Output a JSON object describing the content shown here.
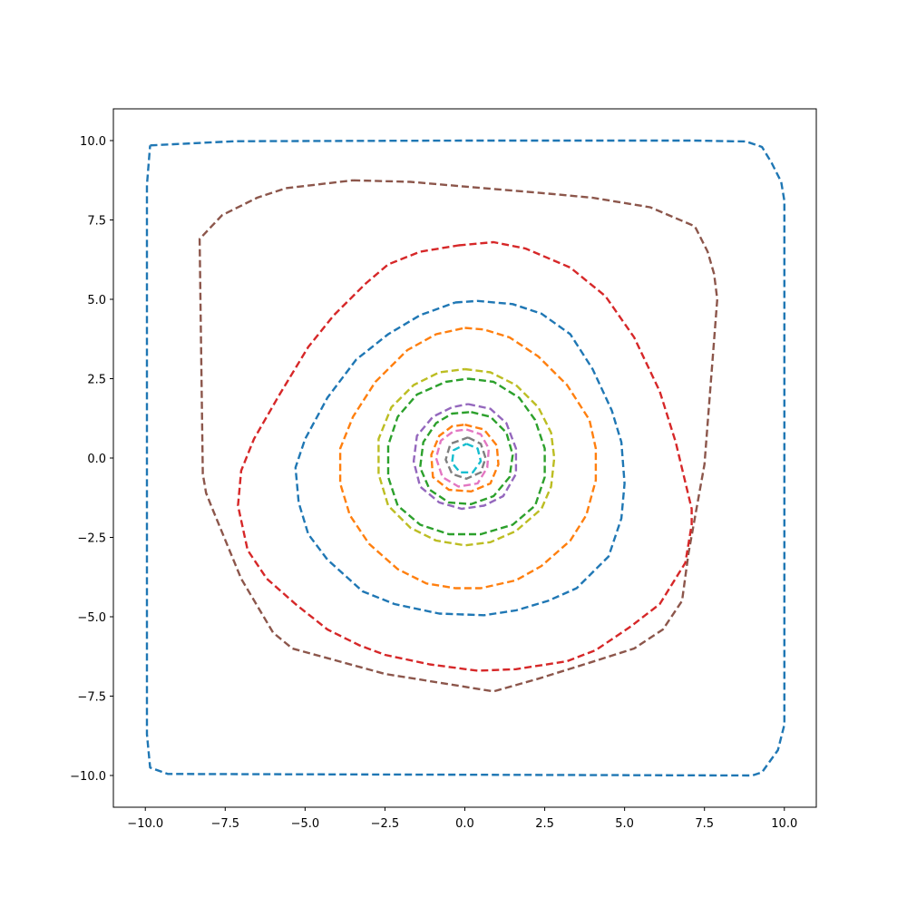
{
  "chart_data": {
    "type": "line",
    "title": "",
    "xlabel": "",
    "ylabel": "",
    "xlim": [
      -11,
      11
    ],
    "ylim": [
      -11,
      11
    ],
    "grid": false,
    "legend": "none",
    "line_style": "dashed",
    "x_ticks": [
      -10,
      -7.5,
      -5,
      -2.5,
      0,
      2.5,
      5,
      7.5,
      10
    ],
    "x_tick_labels": [
      "−10.0",
      "−7.5",
      "−5.0",
      "−2.5",
      "0.0",
      "2.5",
      "5.0",
      "7.5",
      "10.0"
    ],
    "y_ticks": [
      -10,
      -7.5,
      -5,
      -2.5,
      0,
      2.5,
      5,
      7.5,
      10
    ],
    "y_tick_labels": [
      "−10.0",
      "−7.5",
      "−5.0",
      "−2.5",
      "0.0",
      "2.5",
      "5.0",
      "7.5",
      "10.0"
    ],
    "series": [
      {
        "color": "#1f77b4",
        "points": [
          [
            -9.85,
            9.85
          ],
          [
            -7.2,
            9.98
          ],
          [
            0,
            10
          ],
          [
            7.2,
            10
          ],
          [
            8.8,
            9.97
          ],
          [
            9.3,
            9.8
          ],
          [
            9.6,
            9.3
          ],
          [
            9.9,
            8.7
          ],
          [
            10,
            8.1
          ],
          [
            10,
            -8.4
          ],
          [
            9.8,
            -9.2
          ],
          [
            9.3,
            -9.9
          ],
          [
            9,
            -10
          ],
          [
            -9.3,
            -9.95
          ],
          [
            -9.85,
            -9.75
          ],
          [
            -9.95,
            -8.7
          ],
          [
            -9.95,
            8.6
          ],
          [
            -9.85,
            9.85
          ]
        ]
      },
      {
        "color": "#8c564b",
        "points": [
          [
            -3.5,
            8.75
          ],
          [
            -1.7,
            8.7
          ],
          [
            0,
            8.55
          ],
          [
            2.4,
            8.35
          ],
          [
            4,
            8.2
          ],
          [
            5.8,
            7.9
          ],
          [
            7.2,
            7.3
          ],
          [
            7.6,
            6.5
          ],
          [
            7.8,
            5.8
          ],
          [
            7.9,
            5
          ],
          [
            7.5,
            -0.2
          ],
          [
            7,
            -3
          ],
          [
            6.8,
            -4.5
          ],
          [
            6.2,
            -5.4
          ],
          [
            5.3,
            -6
          ],
          [
            3.9,
            -6.45
          ],
          [
            2.3,
            -6.95
          ],
          [
            0.9,
            -7.35
          ],
          [
            -2.5,
            -6.8
          ],
          [
            -5.4,
            -6
          ],
          [
            -6,
            -5.5
          ],
          [
            -7,
            -3.8
          ],
          [
            -7.9,
            -1.6
          ],
          [
            -8.1,
            -1.1
          ],
          [
            -8.2,
            -0.5
          ],
          [
            -8.3,
            6.9
          ],
          [
            -7.6,
            7.65
          ],
          [
            -6.5,
            8.2
          ],
          [
            -5.6,
            8.5
          ],
          [
            -3.5,
            8.75
          ]
        ]
      },
      {
        "color": "#d62728",
        "points": [
          [
            -0.2,
            6.7
          ],
          [
            0.9,
            6.8
          ],
          [
            1.9,
            6.6
          ],
          [
            3.3,
            6
          ],
          [
            4.4,
            5.1
          ],
          [
            5.3,
            3.8
          ],
          [
            6.1,
            2.1
          ],
          [
            6.6,
            0.5
          ],
          [
            7.1,
            -1.6
          ],
          [
            7.1,
            -2.1
          ],
          [
            6.9,
            -3.3
          ],
          [
            6.1,
            -4.6
          ],
          [
            5.2,
            -5.3
          ],
          [
            4.1,
            -6.05
          ],
          [
            3.2,
            -6.4
          ],
          [
            1.6,
            -6.65
          ],
          [
            0.4,
            -6.7
          ],
          [
            -1.1,
            -6.5
          ],
          [
            -2.5,
            -6.2
          ],
          [
            -3.3,
            -5.9
          ],
          [
            -4.3,
            -5.4
          ],
          [
            -5.3,
            -4.6
          ],
          [
            -6.2,
            -3.8
          ],
          [
            -6.8,
            -2.9
          ],
          [
            -7.1,
            -1.5
          ],
          [
            -7,
            -0.4
          ],
          [
            -6.6,
            0.6
          ],
          [
            -5.8,
            2
          ],
          [
            -4.9,
            3.5
          ],
          [
            -4.1,
            4.5
          ],
          [
            -3.1,
            5.5
          ],
          [
            -2.4,
            6.1
          ],
          [
            -1.4,
            6.5
          ],
          [
            -0.2,
            6.7
          ]
        ]
      },
      {
        "color": "#1f77b4",
        "points": [
          [
            -0.3,
            4.9
          ],
          [
            0.4,
            4.95
          ],
          [
            1.5,
            4.85
          ],
          [
            2.4,
            4.55
          ],
          [
            3.3,
            3.9
          ],
          [
            4,
            2.8
          ],
          [
            4.6,
            1.5
          ],
          [
            4.9,
            0.5
          ],
          [
            5,
            -0.8
          ],
          [
            4.9,
            -1.9
          ],
          [
            4.5,
            -3.1
          ],
          [
            3.5,
            -4.1
          ],
          [
            2.6,
            -4.5
          ],
          [
            1.6,
            -4.8
          ],
          [
            0.6,
            -4.95
          ],
          [
            -0.8,
            -4.9
          ],
          [
            -2.2,
            -4.6
          ],
          [
            -3.2,
            -4.2
          ],
          [
            -4.3,
            -3.2
          ],
          [
            -4.9,
            -2.4
          ],
          [
            -5.2,
            -1.4
          ],
          [
            -5.3,
            -0.3
          ],
          [
            -5,
            0.6
          ],
          [
            -4.3,
            1.9
          ],
          [
            -3.4,
            3.1
          ],
          [
            -2.4,
            3.9
          ],
          [
            -1.4,
            4.5
          ],
          [
            -0.3,
            4.9
          ]
        ]
      },
      {
        "color": "#ff7f0e",
        "points": [
          [
            0,
            4.1
          ],
          [
            0.6,
            4.05
          ],
          [
            1.4,
            3.8
          ],
          [
            2.3,
            3.2
          ],
          [
            3.2,
            2.3
          ],
          [
            3.9,
            1.2
          ],
          [
            4.1,
            0.3
          ],
          [
            4.1,
            -0.7
          ],
          [
            3.8,
            -1.8
          ],
          [
            3.3,
            -2.6
          ],
          [
            2.4,
            -3.4
          ],
          [
            1.6,
            -3.85
          ],
          [
            0.5,
            -4.1
          ],
          [
            -0.3,
            -4.1
          ],
          [
            -1.2,
            -3.95
          ],
          [
            -2.1,
            -3.5
          ],
          [
            -3,
            -2.7
          ],
          [
            -3.6,
            -1.8
          ],
          [
            -3.9,
            -0.8
          ],
          [
            -3.9,
            0.3
          ],
          [
            -3.5,
            1.3
          ],
          [
            -2.8,
            2.4
          ],
          [
            -1.8,
            3.4
          ],
          [
            -0.9,
            3.9
          ],
          [
            0,
            4.1
          ]
        ]
      },
      {
        "color": "#bcbd22",
        "points": [
          [
            0,
            2.8
          ],
          [
            0.8,
            2.7
          ],
          [
            1.6,
            2.3
          ],
          [
            2.3,
            1.6
          ],
          [
            2.7,
            0.8
          ],
          [
            2.8,
            0
          ],
          [
            2.7,
            -0.9
          ],
          [
            2.4,
            -1.6
          ],
          [
            1.6,
            -2.3
          ],
          [
            0.8,
            -2.65
          ],
          [
            0,
            -2.75
          ],
          [
            -0.9,
            -2.6
          ],
          [
            -1.7,
            -2.2
          ],
          [
            -2.4,
            -1.5
          ],
          [
            -2.7,
            -0.5
          ],
          [
            -2.7,
            0.6
          ],
          [
            -2.3,
            1.6
          ],
          [
            -1.6,
            2.3
          ],
          [
            -0.8,
            2.7
          ],
          [
            0,
            2.8
          ]
        ]
      },
      {
        "color": "#2ca02c",
        "points": [
          [
            0.1,
            2.5
          ],
          [
            0.9,
            2.4
          ],
          [
            1.7,
            1.9
          ],
          [
            2.2,
            1.2
          ],
          [
            2.5,
            0.3
          ],
          [
            2.5,
            -0.6
          ],
          [
            2.2,
            -1.5
          ],
          [
            1.5,
            -2.1
          ],
          [
            0.5,
            -2.4
          ],
          [
            -0.5,
            -2.4
          ],
          [
            -1.4,
            -2.1
          ],
          [
            -2.1,
            -1.5
          ],
          [
            -2.4,
            -0.6
          ],
          [
            -2.4,
            0.4
          ],
          [
            -2.1,
            1.3
          ],
          [
            -1.5,
            2
          ],
          [
            -0.6,
            2.4
          ],
          [
            0.1,
            2.5
          ]
        ]
      },
      {
        "color": "#9467bd",
        "points": [
          [
            0.1,
            1.7
          ],
          [
            0.8,
            1.55
          ],
          [
            1.3,
            1.1
          ],
          [
            1.6,
            0.3
          ],
          [
            1.6,
            -0.5
          ],
          [
            1.2,
            -1.2
          ],
          [
            0.6,
            -1.5
          ],
          [
            -0.1,
            -1.6
          ],
          [
            -0.8,
            -1.4
          ],
          [
            -1.4,
            -0.9
          ],
          [
            -1.6,
            -0.1
          ],
          [
            -1.5,
            0.7
          ],
          [
            -1,
            1.3
          ],
          [
            -0.4,
            1.6
          ],
          [
            0.1,
            1.7
          ]
        ]
      },
      {
        "color": "#2ca02c",
        "points": [
          [
            0.2,
            1.45
          ],
          [
            0.8,
            1.3
          ],
          [
            1.3,
            0.8
          ],
          [
            1.5,
            0.1
          ],
          [
            1.4,
            -0.6
          ],
          [
            0.9,
            -1.2
          ],
          [
            0.2,
            -1.45
          ],
          [
            -0.5,
            -1.4
          ],
          [
            -1.1,
            -1
          ],
          [
            -1.4,
            -0.3
          ],
          [
            -1.3,
            0.5
          ],
          [
            -0.9,
            1.1
          ],
          [
            -0.4,
            1.4
          ],
          [
            0.2,
            1.45
          ]
        ]
      },
      {
        "color": "#ff7f0e",
        "points": [
          [
            0,
            1.05
          ],
          [
            0.6,
            0.9
          ],
          [
            1,
            0.4
          ],
          [
            1.05,
            -0.2
          ],
          [
            0.8,
            -0.8
          ],
          [
            0.2,
            -1.05
          ],
          [
            -0.5,
            -1
          ],
          [
            -1,
            -0.6
          ],
          [
            -1.05,
            0.1
          ],
          [
            -0.8,
            0.7
          ],
          [
            -0.4,
            1
          ],
          [
            0,
            1.05
          ]
        ]
      },
      {
        "color": "#e377c2",
        "points": [
          [
            0.05,
            0.9
          ],
          [
            0.5,
            0.75
          ],
          [
            0.75,
            0.3
          ],
          [
            0.7,
            -0.3
          ],
          [
            0.4,
            -0.8
          ],
          [
            -0.2,
            -0.9
          ],
          [
            -0.7,
            -0.6
          ],
          [
            -0.9,
            0
          ],
          [
            -0.75,
            0.55
          ],
          [
            -0.35,
            0.85
          ],
          [
            0.05,
            0.9
          ]
        ]
      },
      {
        "color": "#7f7f7f",
        "points": [
          [
            0.1,
            0.65
          ],
          [
            0.5,
            0.45
          ],
          [
            0.65,
            0
          ],
          [
            0.5,
            -0.45
          ],
          [
            0.05,
            -0.65
          ],
          [
            -0.4,
            -0.5
          ],
          [
            -0.6,
            -0.05
          ],
          [
            -0.45,
            0.45
          ],
          [
            0.1,
            0.65
          ]
        ]
      },
      {
        "color": "#17becf",
        "points": [
          [
            0.05,
            0.45
          ],
          [
            0.4,
            0.3
          ],
          [
            0.5,
            -0.1
          ],
          [
            0.25,
            -0.45
          ],
          [
            -0.15,
            -0.45
          ],
          [
            -0.4,
            -0.15
          ],
          [
            -0.35,
            0.25
          ],
          [
            0.05,
            0.45
          ]
        ]
      }
    ]
  }
}
